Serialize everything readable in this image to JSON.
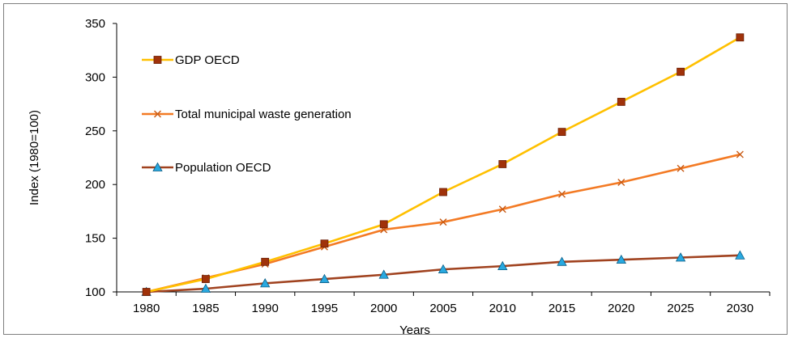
{
  "chart_data": {
    "type": "line",
    "title": "",
    "xlabel": "Years",
    "ylabel": "Index (1980=100)",
    "x": [
      "1980",
      "1985",
      "1990",
      "1995",
      "2000",
      "2005",
      "2010",
      "2015",
      "2020",
      "2025",
      "2030"
    ],
    "ylim": [
      100,
      350
    ],
    "yticks": [
      100,
      150,
      200,
      250,
      300,
      350
    ],
    "grid": false,
    "legend_position": "top-left",
    "series": [
      {
        "name": "GDP OECD",
        "color": "#ffc000",
        "marker": "square",
        "marker_color": "#a0320a",
        "values": [
          100,
          112,
          128,
          145,
          163,
          193,
          219,
          249,
          277,
          305,
          337
        ]
      },
      {
        "name": "Total municipal waste generation",
        "color": "#f37a24",
        "marker": "x",
        "marker_color": "#c85a14",
        "values": [
          100,
          113,
          126,
          142,
          158,
          165,
          177,
          191,
          202,
          215,
          228
        ]
      },
      {
        "name": "Population OECD",
        "color": "#a0421f",
        "marker": "triangle",
        "marker_color": "#29a9e0",
        "values": [
          100,
          103,
          108,
          112,
          116,
          121,
          124,
          128,
          130,
          132,
          134
        ]
      }
    ]
  }
}
